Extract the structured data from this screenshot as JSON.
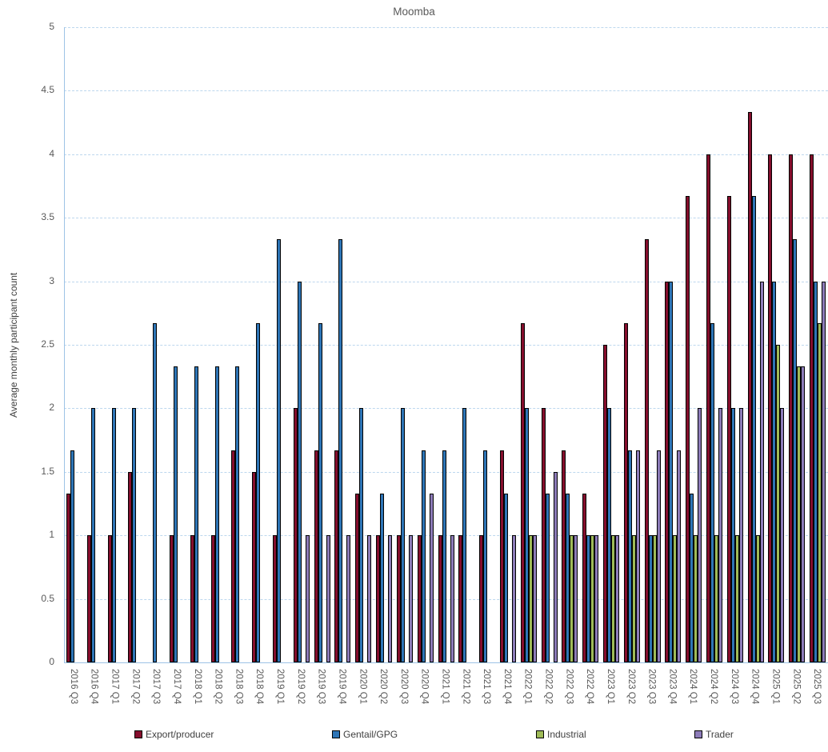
{
  "chart_data": {
    "type": "bar",
    "title": "Moomba",
    "ylabel": "Average monthly participant count",
    "xlabel": "",
    "ylim": [
      0,
      5
    ],
    "ytick_step": 0.5,
    "yticks": [
      "0",
      "0.5",
      "1",
      "1.5",
      "2",
      "2.5",
      "3",
      "3.5",
      "4",
      "4.5",
      "5"
    ],
    "grid": true,
    "legend_position": "bottom",
    "categories": [
      "2016 Q3",
      "2016 Q4",
      "2017 Q1",
      "2017 Q2",
      "2017 Q3",
      "2017 Q4",
      "2018 Q1",
      "2018 Q2",
      "2018 Q3",
      "2018 Q4",
      "2019 Q1",
      "2019 Q2",
      "2019 Q3",
      "2019 Q4",
      "2020 Q1",
      "2020 Q2",
      "2020 Q3",
      "2020 Q4",
      "2021 Q1",
      "2021 Q2",
      "2021 Q3",
      "2021 Q4",
      "2022 Q1",
      "2022 Q2",
      "2022 Q3",
      "2022 Q4",
      "2023 Q1",
      "2023 Q2",
      "2023 Q3",
      "2023 Q4",
      "2024 Q1",
      "2024 Q2",
      "2024 Q3",
      "2024 Q4",
      "2025 Q1",
      "2025 Q2",
      "2025 Q3"
    ],
    "series": [
      {
        "name": "Export/producer",
        "color": "#850e2d",
        "values": [
          1.33,
          1,
          1,
          1.5,
          null,
          1,
          1,
          1,
          1.67,
          1.5,
          1,
          2,
          1.67,
          1.67,
          1.33,
          1,
          1,
          1,
          1,
          1,
          1,
          1.67,
          2.67,
          2,
          1.67,
          1.33,
          2.5,
          2.67,
          3.33,
          3,
          3.67,
          4,
          3.67,
          4.33,
          4,
          4,
          4
        ]
      },
      {
        "name": "Gentail/GPG",
        "color": "#2e75b6",
        "values": [
          1.67,
          2,
          2,
          2,
          2.67,
          2.33,
          2.33,
          2.33,
          2.33,
          2.67,
          3.33,
          3,
          2.67,
          3.33,
          2,
          1.33,
          2,
          1.67,
          1.67,
          2,
          1.67,
          1.33,
          2,
          1.33,
          1.33,
          1,
          2,
          1.67,
          1,
          3,
          1.33,
          2.67,
          2,
          3.67,
          3,
          3.33,
          3
        ]
      },
      {
        "name": "Industrial",
        "color": "#9fbb58",
        "values": [
          null,
          null,
          null,
          null,
          null,
          null,
          null,
          null,
          null,
          null,
          null,
          null,
          null,
          null,
          null,
          null,
          null,
          null,
          null,
          null,
          null,
          null,
          1,
          null,
          1,
          1,
          1,
          1,
          1,
          1,
          1,
          1,
          1,
          1,
          2.5,
          2.33,
          2.67
        ]
      },
      {
        "name": "Trader",
        "color": "#8d7cb9",
        "values": [
          null,
          null,
          null,
          null,
          null,
          null,
          null,
          null,
          null,
          null,
          null,
          1,
          1,
          1,
          1,
          1,
          1,
          1.33,
          1,
          null,
          null,
          1,
          1,
          1.5,
          1,
          1,
          1,
          1.67,
          1.67,
          1.67,
          2,
          2,
          2,
          3,
          2,
          2.33,
          3
        ]
      }
    ]
  },
  "colors": {
    "axis_text": "#595959",
    "legend_text": "#404040",
    "gridline": "#bdd7ee",
    "axis_line": "#9dc3e6",
    "bar_outline": "#000000",
    "background": "#ffffff"
  },
  "layout_values": {
    "legend_left_positions": [
      168,
      415,
      670,
      868
    ]
  }
}
